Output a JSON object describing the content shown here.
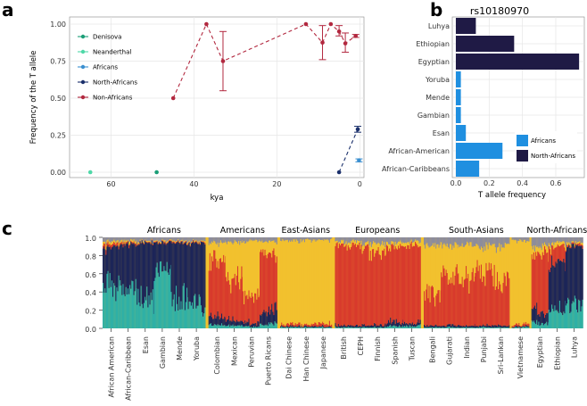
{
  "panel_labels": {
    "a": "a",
    "b": "b",
    "c": "c"
  },
  "chart_data": [
    {
      "panel": "a",
      "type": "line",
      "xlabel": "kya",
      "ylabel": "Frequency of the T allele",
      "xlim": [
        70,
        -1
      ],
      "ylim": [
        0,
        1
      ],
      "xticks": [
        60,
        40,
        20,
        0
      ],
      "yticks": [
        0,
        0.25,
        0.5,
        0.75,
        1
      ],
      "ytick_labels": [
        "0.00",
        "0.25",
        "0.50",
        "0.75",
        "1.00"
      ],
      "series": [
        {
          "name": "Denisova",
          "color": "#1b9e77",
          "points": [
            {
              "x": 49,
              "y": 0
            }
          ]
        },
        {
          "name": "Neanderthal",
          "color": "#4fd8a8",
          "points": [
            {
              "x": 65,
              "y": 0
            }
          ]
        },
        {
          "name": "Africans",
          "color": "#3a8fd0",
          "points": [
            {
              "x": 0.2,
              "y": 0.08,
              "err": [
                0.07,
                0.09
              ]
            }
          ]
        },
        {
          "name": "North-Africans",
          "color": "#1a2f6b",
          "points": [
            {
              "x": 5,
              "y": 0
            },
            {
              "x": 0.5,
              "y": 0.29,
              "err": [
                0.27,
                0.31
              ]
            }
          ]
        },
        {
          "name": "Non-Africans",
          "color": "#b2283f",
          "points": [
            {
              "x": 45,
              "y": 0.5
            },
            {
              "x": 37,
              "y": 1.0
            },
            {
              "x": 33,
              "y": 0.75,
              "err": [
                0.55,
                0.95
              ]
            },
            {
              "x": 13,
              "y": 1.0
            },
            {
              "x": 9,
              "y": 0.875,
              "err": [
                0.76,
                0.99
              ]
            },
            {
              "x": 7,
              "y": 1.0
            },
            {
              "x": 5,
              "y": 0.95,
              "err": [
                0.92,
                0.99
              ]
            },
            {
              "x": 3.5,
              "y": 0.87,
              "err": [
                0.81,
                0.94
              ]
            },
            {
              "x": 1,
              "y": 0.92,
              "err": [
                0.91,
                0.93
              ]
            }
          ]
        }
      ]
    },
    {
      "panel": "b",
      "type": "bar",
      "title": "rs10180970",
      "xlabel": "T allele frequency",
      "xlim": [
        0,
        0.75
      ],
      "xticks": [
        0,
        0.2,
        0.4,
        0.6
      ],
      "xtick_labels": [
        "0.0",
        "0.2",
        "0.4",
        "0.6"
      ],
      "categories": [
        "Luhya",
        "Ethiopian",
        "Egyptian",
        "Yoruba",
        "Mende",
        "Gambian",
        "Esan",
        "African-American",
        "African-Caribbeans"
      ],
      "values": [
        0.12,
        0.35,
        0.74,
        0.03,
        0.03,
        0.03,
        0.06,
        0.28,
        0.14
      ],
      "groups": [
        "North-Africans",
        "North-Africans",
        "North-Africans",
        "Africans",
        "Africans",
        "Africans",
        "Africans",
        "Africans",
        "Africans"
      ],
      "legend": [
        {
          "name": "Africans",
          "color": "#1f8fe0"
        },
        {
          "name": "North-Africans",
          "color": "#1f1a45"
        }
      ]
    },
    {
      "panel": "c",
      "type": "stacked-bar",
      "ylim": [
        0,
        1
      ],
      "yticks": [
        "0.0",
        "0.2",
        "0.4",
        "0.6",
        "0.8",
        "1.0"
      ],
      "groups": [
        "Africans",
        "Americans",
        "East-Asians",
        "Europeans",
        "South-Asians",
        "North-Africans"
      ],
      "populations": [
        "African American",
        "African-Caribbean",
        "Esan",
        "Gambian",
        "Mende",
        "Yoruba",
        "Colombian",
        "Mexican",
        "Peruvian",
        "Puerto Ricans",
        "Dai Chinese",
        "Han Chinese",
        "Japanese",
        "British",
        "CEPH",
        "Finnish",
        "Spanish",
        "Tuscan",
        "Bengali",
        "Gujarati",
        "Indian",
        "Punjabi",
        "Sri-Lankan",
        "Vietnamese",
        "Egyptian",
        "Ethiopian",
        "Luhya"
      ],
      "ancestry_components": [
        {
          "name": "component-teal",
          "color": "#2fb0a6"
        },
        {
          "name": "component-navy",
          "color": "#1c2558"
        },
        {
          "name": "component-red",
          "color": "#d83a2c"
        },
        {
          "name": "component-yellow",
          "color": "#f2c12e"
        },
        {
          "name": "component-grey",
          "color": "#8c8c9c"
        }
      ]
    }
  ]
}
